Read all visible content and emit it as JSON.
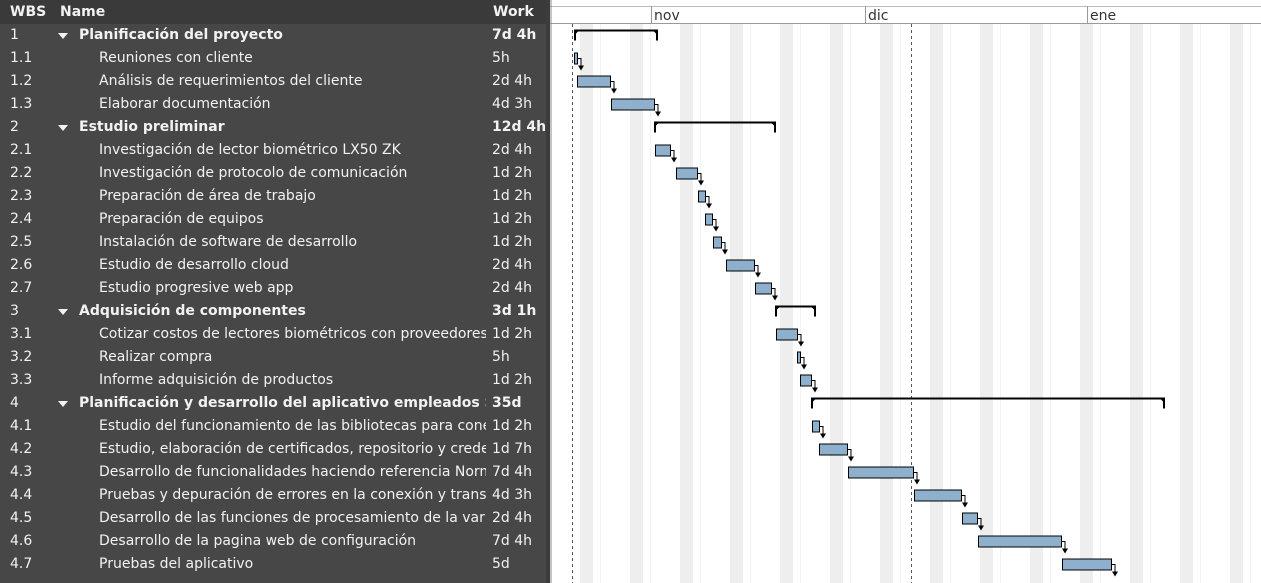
{
  "header": {
    "wbs": "WBS",
    "name": "Name",
    "work": "Work"
  },
  "timeline": {
    "months": [
      "nov",
      "dic",
      "ene"
    ]
  },
  "rows": [
    {
      "wbs": "1",
      "name": "Planificación del proyecto",
      "work": "7d 4h"
    },
    {
      "wbs": "1.1",
      "name": "Reuniones con cliente",
      "work": "5h"
    },
    {
      "wbs": "1.2",
      "name": "Análisis de requerimientos del cliente",
      "work": "2d 4h"
    },
    {
      "wbs": "1.3",
      "name": "Elaborar documentación",
      "work": "4d 3h"
    },
    {
      "wbs": "2",
      "name": "Estudio preliminar",
      "work": "12d 4h"
    },
    {
      "wbs": "2.1",
      "name": "Investigación de lector biométrico LX50 ZK",
      "work": "2d 4h"
    },
    {
      "wbs": "2.2",
      "name": "Investigación de protocolo de comunicación",
      "work": "1d 2h"
    },
    {
      "wbs": "2.3",
      "name": "Preparación de área de trabajo",
      "work": "1d 2h"
    },
    {
      "wbs": "2.4",
      "name": "Preparación de equipos",
      "work": "1d 2h"
    },
    {
      "wbs": "2.5",
      "name": "Instalación de software de desarrollo",
      "work": "1d 2h"
    },
    {
      "wbs": "2.6",
      "name": "Estudio de desarrollo cloud",
      "work": "2d 4h"
    },
    {
      "wbs": "2.7",
      "name": "Estudio progresive web app",
      "work": "2d 4h"
    },
    {
      "wbs": "3",
      "name": "Adquisición de componentes",
      "work": "3d 1h"
    },
    {
      "wbs": "3.1",
      "name": "Cotizar costos de lectores biométricos con proveedores",
      "work": "1d 2h"
    },
    {
      "wbs": "3.2",
      "name": "Realizar compra",
      "work": "5h"
    },
    {
      "wbs": "3.3",
      "name": "Informe adquisición de productos",
      "work": "1d 2h"
    },
    {
      "wbs": "4",
      "name": "Planificación y desarrollo del aplicativo empleados SER&I",
      "work": "35d"
    },
    {
      "wbs": "4.1",
      "name": "Estudio del funcionamiento de las bibliotecas para conexi",
      "work": "1d 2h"
    },
    {
      "wbs": "4.2",
      "name": "Estudio, elaboración de certificados, repositorio y creden",
      "work": "1d 7h"
    },
    {
      "wbs": "4.3",
      "name": "Desarrollo de funcionalidades haciendo referencia Norma",
      "work": "7d 4h"
    },
    {
      "wbs": "4.4",
      "name": "Pruebas y depuración de errores en la conexión y transpor",
      "work": "4d 3h"
    },
    {
      "wbs": "4.5",
      "name": "Desarrollo de las funciones de procesamiento de la variab",
      "work": "2d 4h"
    },
    {
      "wbs": "4.6",
      "name": "Desarrollo de la pagina web de configuración",
      "work": "7d 4h"
    },
    {
      "wbs": "4.7",
      "name": "Pruebas del aplicativo",
      "work": "5d"
    }
  ]
}
